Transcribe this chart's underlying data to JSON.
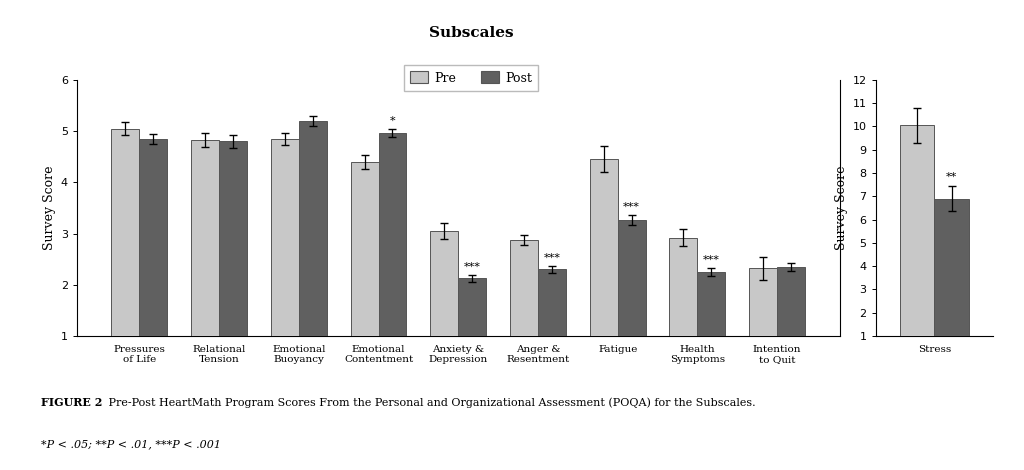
{
  "categories": [
    "Pressures\nof Life",
    "Relational\nTension",
    "Emotional\nBuoyancy",
    "Emotional\nContentment",
    "Anxiety &\nDepression",
    "Anger &\nResentment",
    "Fatigue",
    "Health\nSymptoms",
    "Intention\nto Quit"
  ],
  "pre_values": [
    5.05,
    4.83,
    4.85,
    4.4,
    3.05,
    2.87,
    4.45,
    2.92,
    2.32
  ],
  "post_values": [
    4.85,
    4.8,
    5.2,
    4.97,
    2.13,
    2.3,
    3.27,
    2.25,
    2.35
  ],
  "pre_errors": [
    0.12,
    0.14,
    0.12,
    0.14,
    0.15,
    0.1,
    0.25,
    0.17,
    0.22
  ],
  "post_errors": [
    0.1,
    0.12,
    0.1,
    0.08,
    0.07,
    0.07,
    0.1,
    0.07,
    0.08
  ],
  "sig_labels": [
    "",
    "",
    "",
    "*",
    "***",
    "***",
    "***",
    "***",
    ""
  ],
  "sig_on_post": [
    false,
    false,
    false,
    true,
    true,
    true,
    true,
    true,
    false
  ],
  "stress_pre": 10.05,
  "stress_post": 6.9,
  "stress_pre_err": 0.75,
  "stress_post_err": 0.55,
  "stress_sig": "**",
  "color_pre": "#c8c8c8",
  "color_post": "#606060",
  "left_ylim": [
    1,
    6
  ],
  "left_yticks": [
    1,
    2,
    3,
    4,
    5,
    6
  ],
  "right_ylim": [
    1,
    12
  ],
  "right_yticks": [
    1,
    2,
    3,
    4,
    5,
    6,
    7,
    8,
    9,
    10,
    11,
    12
  ],
  "ylabel": "Survey Score",
  "title": "Subscales",
  "figure_caption_bold": "FIGURE 2",
  "figure_caption_rest": " Pre-Post HeartMath Program Scores From the Personal and Organizational Assessment (POQA) for the Subscales.",
  "footnote": "*P < .05; **P < .01, ***P < .001",
  "bar_width": 0.35,
  "background_color": "#ffffff",
  "edge_color": "#555555"
}
